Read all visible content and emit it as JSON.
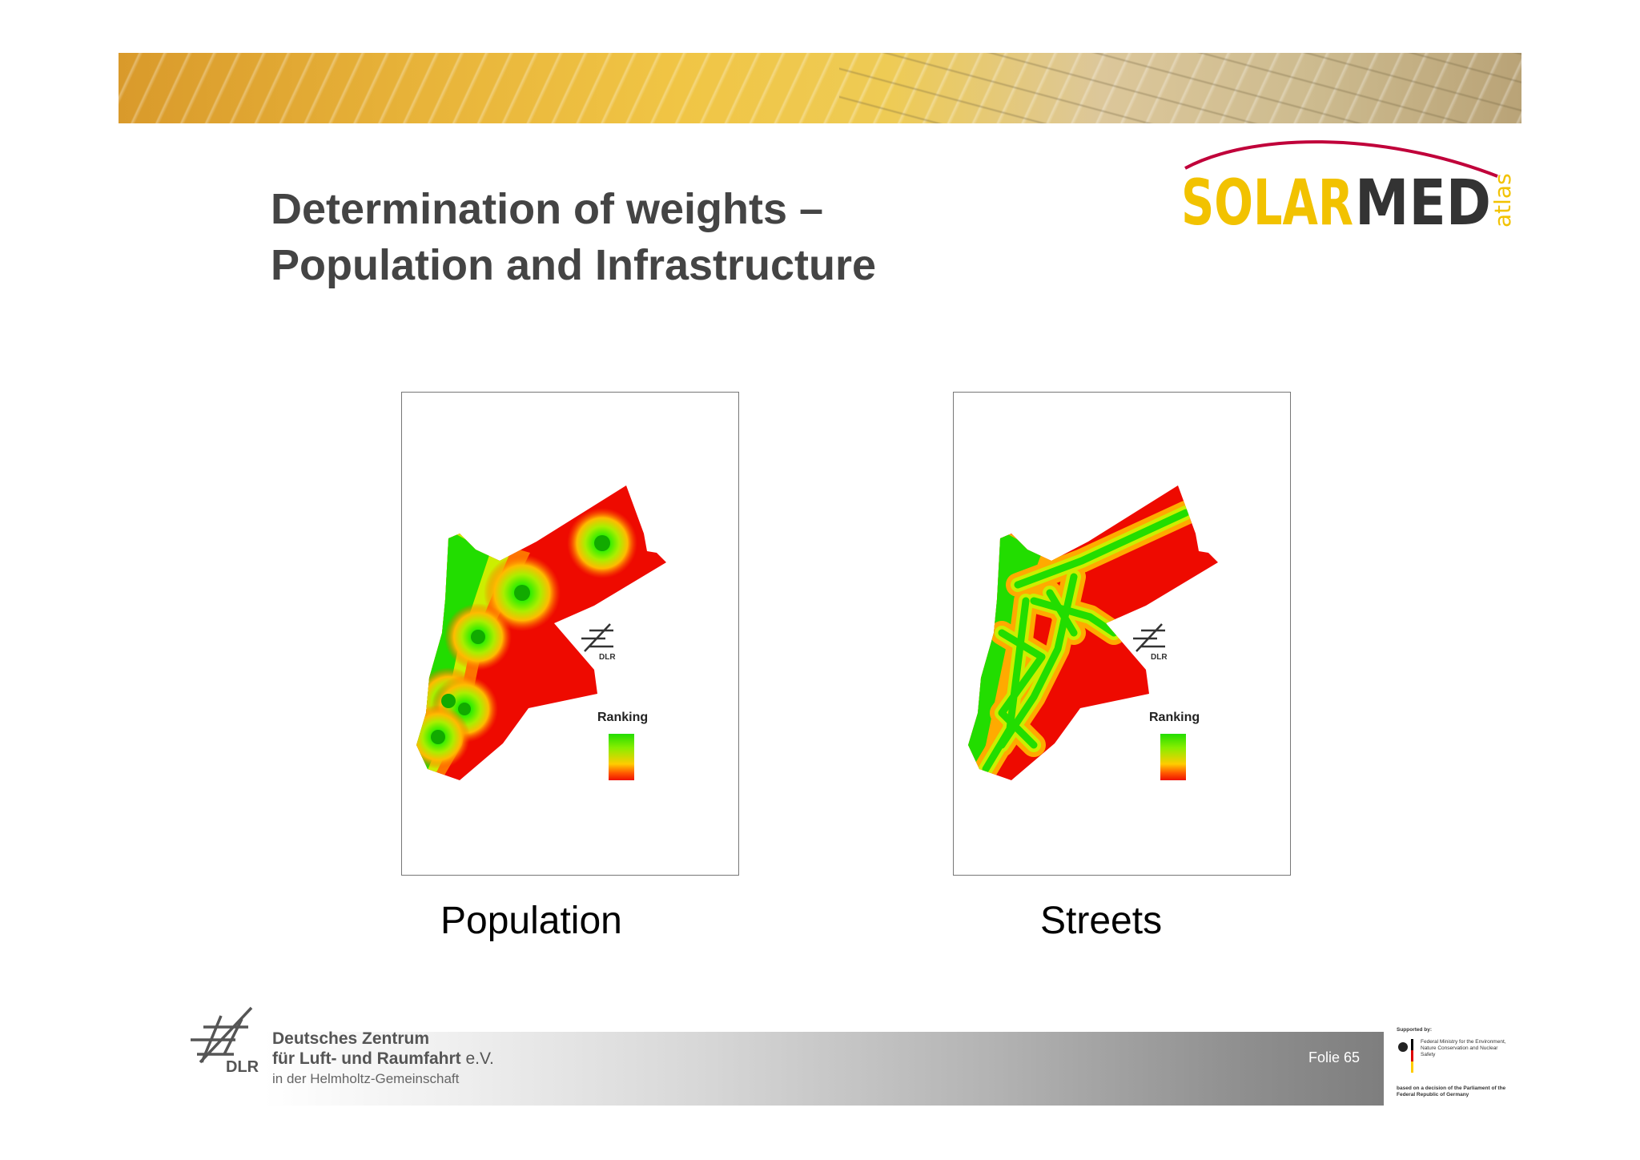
{
  "slide": {
    "title_line1": "Determination of weights –",
    "title_line2": "Population and Infrastructure",
    "page_number": "Folie 65"
  },
  "logo": {
    "solar": "SOLAR",
    "med": "MED",
    "atlas": "atlas"
  },
  "maps": [
    {
      "caption": "Population",
      "legend_title": "Ranking",
      "watermark": "DLR"
    },
    {
      "caption": "Streets",
      "legend_title": "Ranking",
      "watermark": "DLR"
    }
  ],
  "footer": {
    "org_line1": "Deutsches Zentrum",
    "org_line2": "für Luft- und Raumfahrt",
    "org_line2_suffix": "e.V.",
    "org_line3": "in der Helmholtz-Gemeinschaft",
    "dlr_abbrev": "DLR",
    "supported_by": "Supported by:",
    "ministry": "Federal Ministry for the Environment, Nature Conservation and Nuclear Safety",
    "decision": "based on a decision of the Parliament of the Federal Republic of Germany"
  },
  "colors": {
    "ranking_high": "#22dd00",
    "ranking_mid": "#ffcc00",
    "ranking_low": "#ee1100",
    "solar_yellow": "#f2c200",
    "med_dark": "#333333",
    "arc_red": "#c0003a"
  }
}
